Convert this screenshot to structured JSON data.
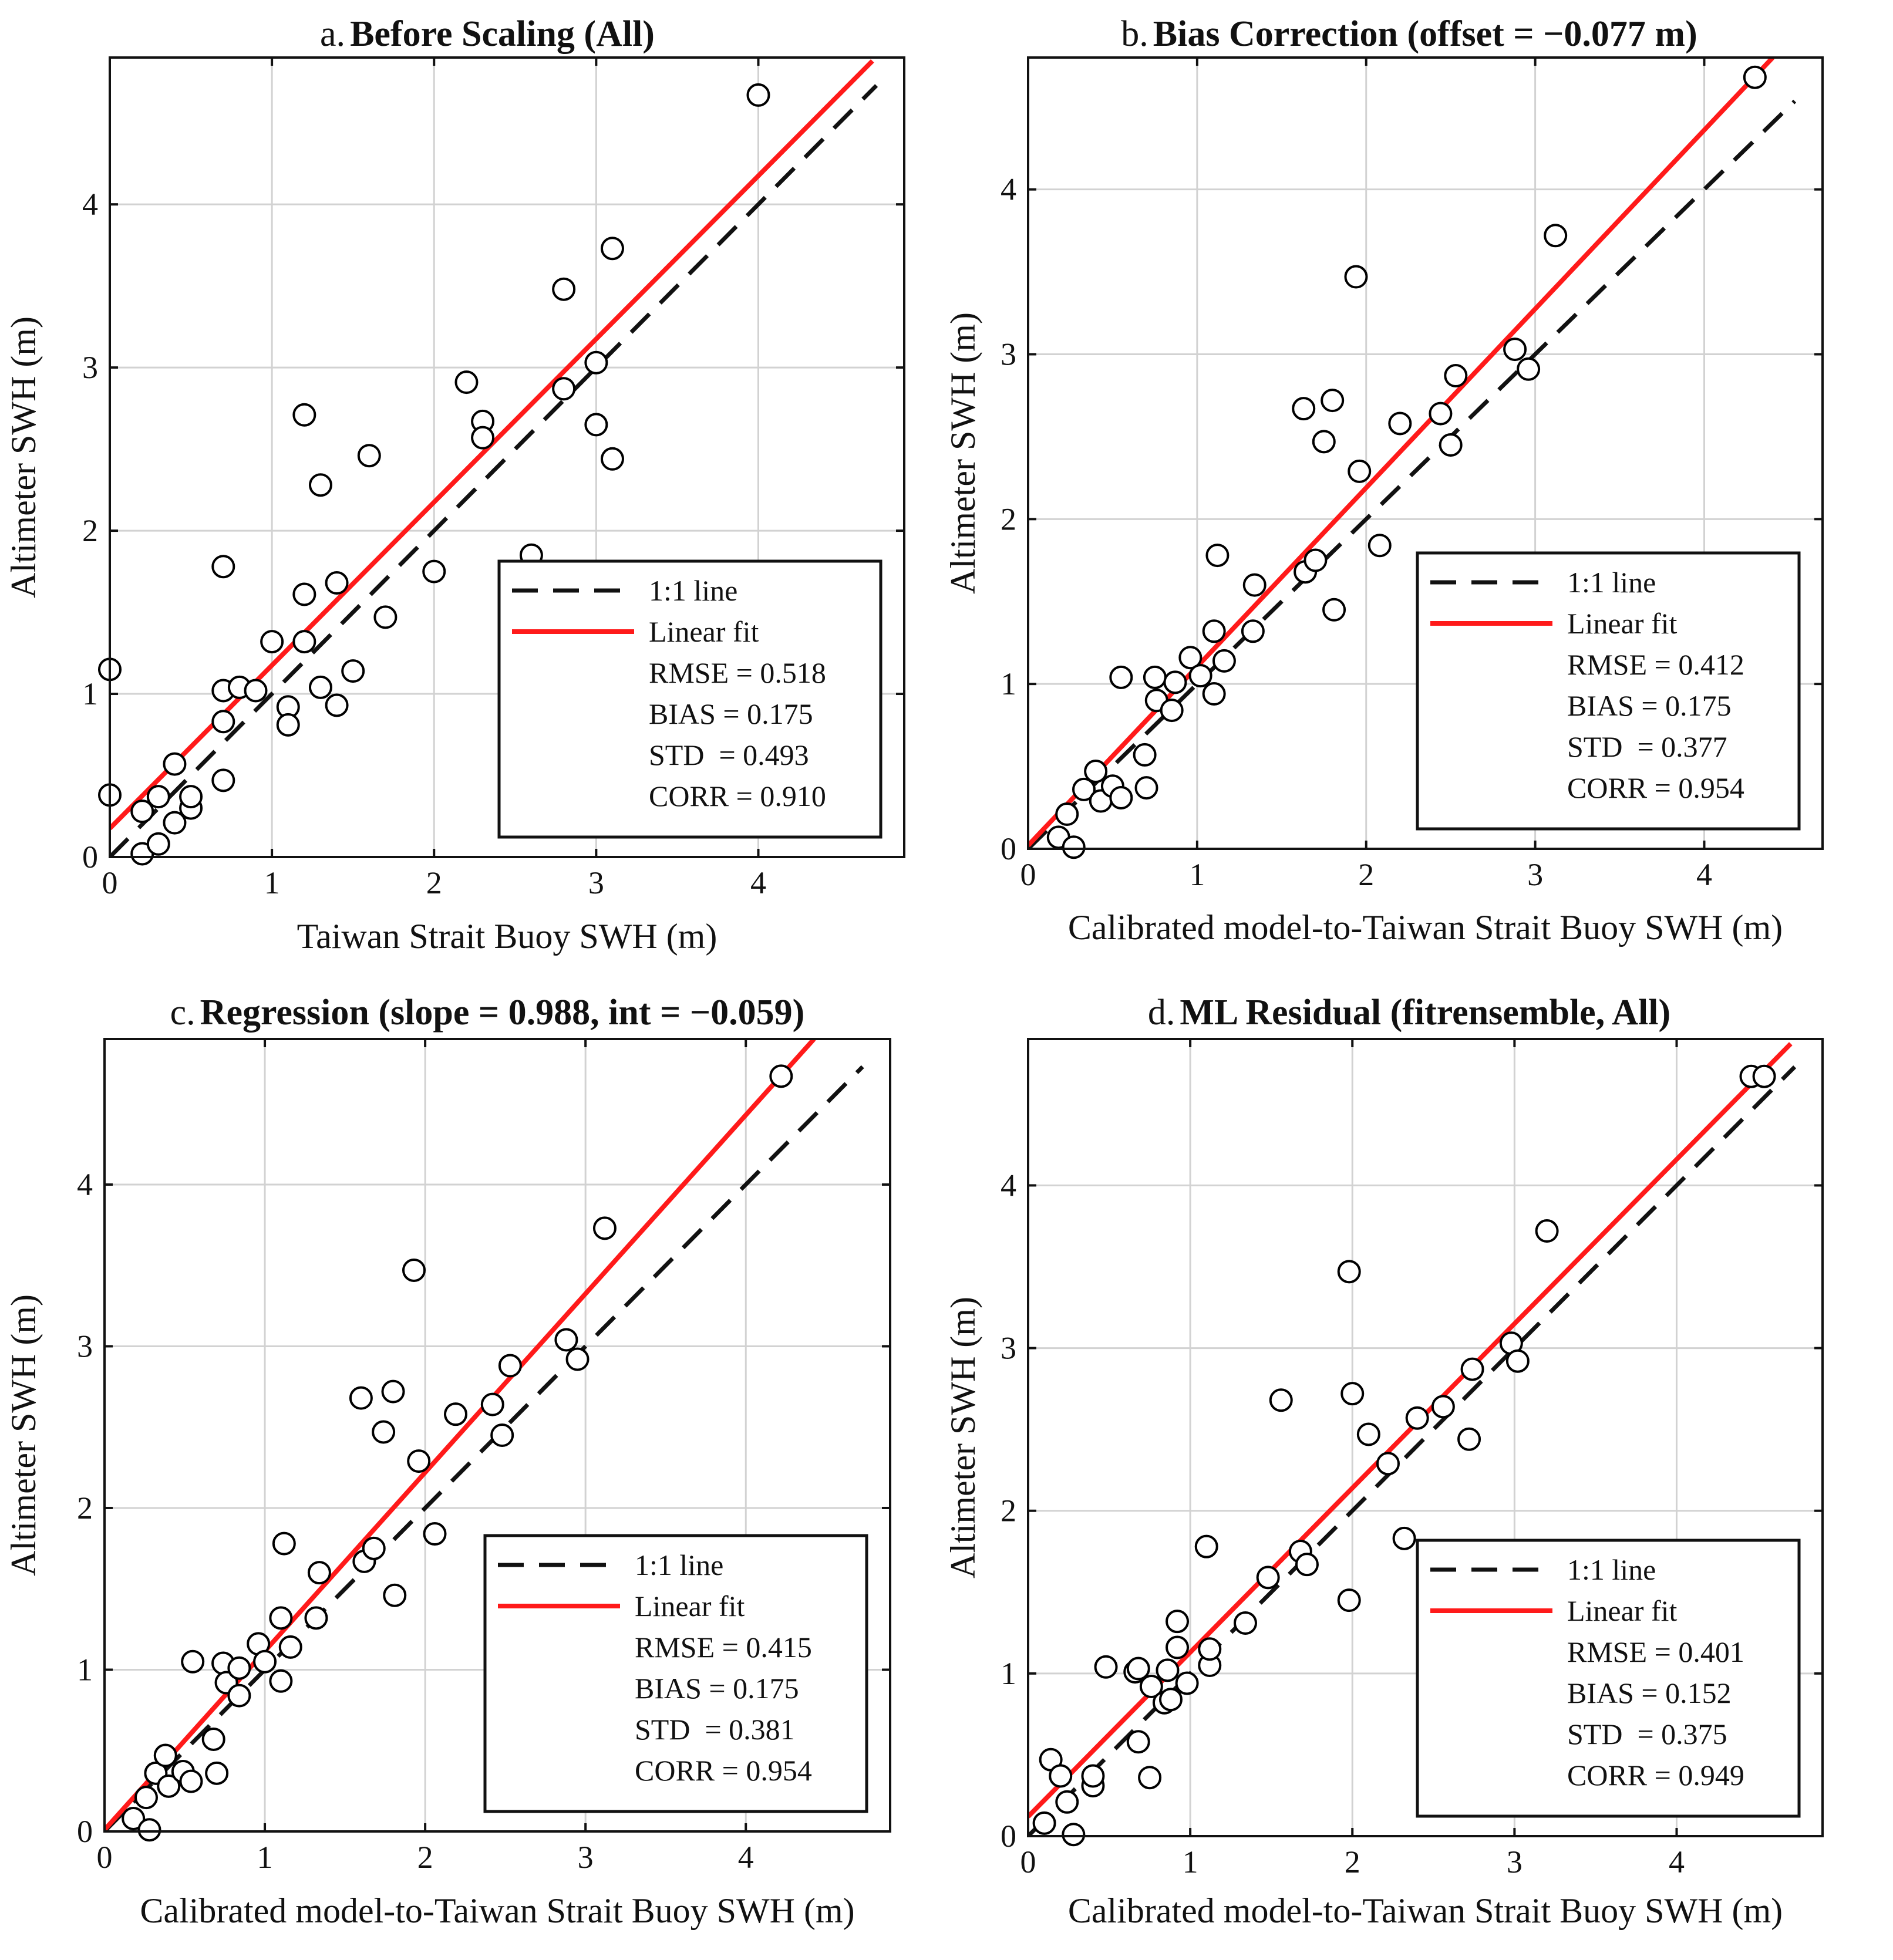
{
  "chart_data": [
    {
      "type": "scatter",
      "panel": "a",
      "title_prefix": "a.",
      "title": "Before Scaling (All)",
      "xlabel": "Taiwan Strait Buoy SWH (m)",
      "ylabel": "Altimeter SWH (m)",
      "xlim": [
        0,
        4.9
      ],
      "ylim": [
        0,
        4.9
      ],
      "xticks": [
        0,
        1,
        2,
        3,
        4
      ],
      "yticks": [
        0,
        1,
        2,
        3,
        4
      ],
      "grid": true,
      "legend_position": "bottom-right",
      "fit": {
        "slope": 1.0,
        "intercept": 0.175
      },
      "legend": {
        "line11": "1:1 line",
        "fit": "Linear fit",
        "stats": [
          "RMSE = 0.518",
          "BIAS = 0.175",
          "STD  = 0.493",
          "CORR = 0.910"
        ]
      },
      "points": [
        [
          0.0,
          1.15
        ],
        [
          0.0,
          0.38
        ],
        [
          0.2,
          0.02
        ],
        [
          0.2,
          0.28
        ],
        [
          0.3,
          0.37
        ],
        [
          0.3,
          0.08
        ],
        [
          0.4,
          0.57
        ],
        [
          0.4,
          0.21
        ],
        [
          0.5,
          0.3
        ],
        [
          0.5,
          0.37
        ],
        [
          0.7,
          1.78
        ],
        [
          0.7,
          1.02
        ],
        [
          0.7,
          0.83
        ],
        [
          0.7,
          0.47
        ],
        [
          0.8,
          1.04
        ],
        [
          0.9,
          1.02
        ],
        [
          1.0,
          1.32
        ],
        [
          1.1,
          0.92
        ],
        [
          1.1,
          0.81
        ],
        [
          1.2,
          2.71
        ],
        [
          1.2,
          1.61
        ],
        [
          1.2,
          1.32
        ],
        [
          1.3,
          2.28
        ],
        [
          1.3,
          1.04
        ],
        [
          1.4,
          1.68
        ],
        [
          1.4,
          0.93
        ],
        [
          1.5,
          1.14
        ],
        [
          1.6,
          2.46
        ],
        [
          1.7,
          1.47
        ],
        [
          2.0,
          1.75
        ],
        [
          2.2,
          2.91
        ],
        [
          2.3,
          2.67
        ],
        [
          2.3,
          2.57
        ],
        [
          2.6,
          1.85
        ],
        [
          2.8,
          3.48
        ],
        [
          2.8,
          2.87
        ],
        [
          3.0,
          3.03
        ],
        [
          3.0,
          2.65
        ],
        [
          3.1,
          3.73
        ],
        [
          3.1,
          2.44
        ],
        [
          4.0,
          4.67
        ]
      ]
    },
    {
      "type": "scatter",
      "panel": "b",
      "title_prefix": "b.",
      "title": "Bias Correction (offset = −0.077 m)",
      "xlabel": "Calibrated model-to-Taiwan Strait Buoy SWH (m)",
      "ylabel": "Altimeter SWH (m)",
      "xlim": [
        0,
        4.7
      ],
      "ylim": [
        0,
        4.8
      ],
      "xticks": [
        0,
        1,
        2,
        3,
        4
      ],
      "yticks": [
        0,
        1,
        2,
        3,
        4
      ],
      "grid": true,
      "legend_position": "bottom-right",
      "fit": {
        "slope": 1.085,
        "intercept": 0.02
      },
      "legend": {
        "line11": "1:1 line",
        "fit": "Linear fit",
        "stats": [
          "RMSE = 0.412",
          "BIAS = 0.175",
          "STD  = 0.377",
          "CORR = 0.954"
        ]
      },
      "points": [
        [
          0.18,
          0.07
        ],
        [
          0.23,
          0.21
        ],
        [
          0.27,
          0.01
        ],
        [
          0.33,
          0.36
        ],
        [
          0.4,
          0.47
        ],
        [
          0.43,
          0.29
        ],
        [
          0.5,
          0.38
        ],
        [
          0.55,
          0.31
        ],
        [
          0.55,
          1.04
        ],
        [
          0.69,
          0.57
        ],
        [
          0.7,
          0.37
        ],
        [
          0.75,
          1.04
        ],
        [
          0.76,
          0.9
        ],
        [
          0.85,
          0.84
        ],
        [
          0.87,
          1.01
        ],
        [
          0.96,
          1.16
        ],
        [
          1.02,
          1.05
        ],
        [
          1.1,
          0.94
        ],
        [
          1.1,
          1.32
        ],
        [
          1.12,
          1.78
        ],
        [
          1.16,
          1.14
        ],
        [
          1.33,
          1.32
        ],
        [
          1.34,
          1.6
        ],
        [
          1.63,
          2.67
        ],
        [
          1.64,
          1.68
        ],
        [
          1.7,
          1.75
        ],
        [
          1.75,
          2.47
        ],
        [
          1.8,
          2.72
        ],
        [
          1.81,
          1.45
        ],
        [
          1.94,
          3.47
        ],
        [
          1.96,
          2.29
        ],
        [
          2.08,
          1.84
        ],
        [
          2.2,
          2.58
        ],
        [
          2.44,
          2.64
        ],
        [
          2.5,
          2.45
        ],
        [
          2.53,
          2.87
        ],
        [
          2.88,
          3.03
        ],
        [
          2.96,
          2.91
        ],
        [
          3.12,
          3.72
        ],
        [
          4.3,
          4.68
        ]
      ]
    },
    {
      "type": "scatter",
      "panel": "c",
      "title_prefix": "c.",
      "title": "Regression (slope = 0.988, int = −0.059)",
      "xlabel": "Calibrated model-to-Taiwan Strait Buoy SWH (m)",
      "ylabel": "Altimeter SWH (m)",
      "xlim": [
        0,
        4.9
      ],
      "ylim": [
        0,
        4.9
      ],
      "xticks": [
        0,
        1,
        2,
        3,
        4
      ],
      "yticks": [
        0,
        1,
        2,
        3,
        4
      ],
      "grid": true,
      "legend_position": "bottom-right",
      "fit": {
        "slope": 1.105,
        "intercept": 0.01
      },
      "legend": {
        "line11": "1:1 line",
        "fit": "Linear fit",
        "stats": [
          "RMSE = 0.415",
          "BIAS = 0.175",
          "STD  = 0.381",
          "CORR = 0.954"
        ]
      },
      "points": [
        [
          0.18,
          0.08
        ],
        [
          0.26,
          0.21
        ],
        [
          0.28,
          0.01
        ],
        [
          0.32,
          0.36
        ],
        [
          0.38,
          0.47
        ],
        [
          0.4,
          0.28
        ],
        [
          0.49,
          0.37
        ],
        [
          0.54,
          0.31
        ],
        [
          0.55,
          1.05
        ],
        [
          0.68,
          0.57
        ],
        [
          0.7,
          0.36
        ],
        [
          0.74,
          1.04
        ],
        [
          0.76,
          0.92
        ],
        [
          0.84,
          1.01
        ],
        [
          0.84,
          0.84
        ],
        [
          0.96,
          1.16
        ],
        [
          1.0,
          1.05
        ],
        [
          1.1,
          0.93
        ],
        [
          1.1,
          1.32
        ],
        [
          1.12,
          1.78
        ],
        [
          1.16,
          1.14
        ],
        [
          1.32,
          1.32
        ],
        [
          1.34,
          1.6
        ],
        [
          1.6,
          2.68
        ],
        [
          1.62,
          1.67
        ],
        [
          1.68,
          1.75
        ],
        [
          1.74,
          2.47
        ],
        [
          1.8,
          2.72
        ],
        [
          1.81,
          1.46
        ],
        [
          1.93,
          3.47
        ],
        [
          1.96,
          2.29
        ],
        [
          2.06,
          1.84
        ],
        [
          2.19,
          2.58
        ],
        [
          2.42,
          2.64
        ],
        [
          2.48,
          2.45
        ],
        [
          2.53,
          2.88
        ],
        [
          2.88,
          3.04
        ],
        [
          2.95,
          2.92
        ],
        [
          3.12,
          3.73
        ],
        [
          4.22,
          4.67
        ]
      ]
    },
    {
      "type": "scatter",
      "panel": "d",
      "title_prefix": "d.",
      "title": "ML Residual (fitrensemble, All)",
      "xlabel": "Calibrated model-to-Taiwan Strait Buoy SWH (m)",
      "ylabel": "Altimeter SWH (m)",
      "xlim": [
        0,
        4.9
      ],
      "ylim": [
        0,
        4.9
      ],
      "xticks": [
        0,
        1,
        2,
        3,
        4
      ],
      "yticks": [
        0,
        1,
        2,
        3,
        4
      ],
      "grid": true,
      "legend_position": "bottom-right",
      "fit": {
        "slope": 1.01,
        "intercept": 0.12
      },
      "legend": {
        "line11": "1:1 line",
        "fit": "Linear fit",
        "stats": [
          "RMSE = 0.401",
          "BIAS = 0.152",
          "STD  = 0.375",
          "CORR = 0.949"
        ]
      },
      "points": [
        [
          0.1,
          0.08
        ],
        [
          0.14,
          0.47
        ],
        [
          0.2,
          0.37
        ],
        [
          0.24,
          0.21
        ],
        [
          0.28,
          0.01
        ],
        [
          0.4,
          0.31
        ],
        [
          0.4,
          0.37
        ],
        [
          0.48,
          1.04
        ],
        [
          0.66,
          1.01
        ],
        [
          0.68,
          1.03
        ],
        [
          0.68,
          0.58
        ],
        [
          0.75,
          0.36
        ],
        [
          0.76,
          0.92
        ],
        [
          0.84,
          0.82
        ],
        [
          0.86,
          1.02
        ],
        [
          0.88,
          0.84
        ],
        [
          0.92,
          1.16
        ],
        [
          0.92,
          1.32
        ],
        [
          0.98,
          0.94
        ],
        [
          1.1,
          1.78
        ],
        [
          1.12,
          1.05
        ],
        [
          1.12,
          1.15
        ],
        [
          1.34,
          1.31
        ],
        [
          1.48,
          1.59
        ],
        [
          1.56,
          2.68
        ],
        [
          1.68,
          1.75
        ],
        [
          1.72,
          1.67
        ],
        [
          1.98,
          1.45
        ],
        [
          1.98,
          3.47
        ],
        [
          2.0,
          2.72
        ],
        [
          2.1,
          2.47
        ],
        [
          2.22,
          2.29
        ],
        [
          2.32,
          1.83
        ],
        [
          2.4,
          2.57
        ],
        [
          2.56,
          2.64
        ],
        [
          2.72,
          2.44
        ],
        [
          2.74,
          2.87
        ],
        [
          2.98,
          3.03
        ],
        [
          3.02,
          2.92
        ],
        [
          3.2,
          3.72
        ],
        [
          4.46,
          4.67
        ],
        [
          4.54,
          4.67
        ]
      ]
    }
  ]
}
